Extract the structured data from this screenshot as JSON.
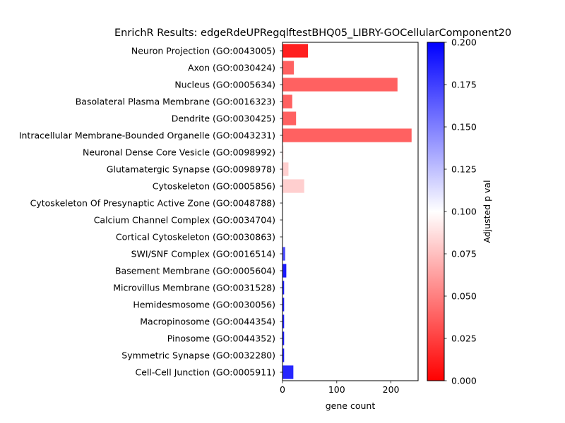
{
  "chart_data": {
    "type": "bar",
    "orientation": "horizontal",
    "title": "EnrichR Results: edgeRdeUPRegqlftestBHQ05_LIBRY-GOCellularComponent20",
    "xlabel": "gene count",
    "ylabel": "",
    "xlim": [
      0,
      250
    ],
    "xticks": [
      "0",
      "100",
      "200"
    ],
    "xtick_values": [
      0,
      100,
      200
    ],
    "grid": false,
    "colorbar": {
      "label": "Adjusted p val",
      "range": [
        0,
        0.2
      ],
      "ticks": [
        "0.000",
        "0.025",
        "0.050",
        "0.075",
        "0.100",
        "0.125",
        "0.150",
        "0.175",
        "0.200"
      ],
      "tick_values": [
        0,
        0.025,
        0.05,
        0.075,
        0.1,
        0.125,
        0.15,
        0.175,
        0.2
      ],
      "colormap": [
        "#ff0000",
        "#ffffff",
        "#0000ff"
      ]
    },
    "categories": [
      "Neuron Projection (GO:0043005)",
      "Axon (GO:0030424)",
      "Nucleus (GO:0005634)",
      "Basolateral Plasma Membrane (GO:0016323)",
      "Dendrite (GO:0030425)",
      "Intracellular Membrane-Bounded Organelle (GO:0043231)",
      "Neuronal Dense Core Vesicle (GO:0098992)",
      "Glutamatergic Synapse (GO:0098978)",
      "Cytoskeleton (GO:0005856)",
      "Cytoskeleton Of Presynaptic Active Zone (GO:0048788)",
      "Calcium Channel Complex (GO:0034704)",
      "Cortical Cytoskeleton (GO:0030863)",
      "SWI/SNF Complex (GO:0016514)",
      "Basement Membrane (GO:0005604)",
      "Microvillus Membrane (GO:0031528)",
      "Hemidesmosome (GO:0030056)",
      "Macropinosome (GO:0044354)",
      "Pinosome (GO:0044352)",
      "Symmetric Synapse (GO:0032280)",
      "Cell-Cell Junction (GO:0005911)"
    ],
    "values": [
      47,
      21,
      212,
      18,
      25,
      238,
      2,
      11,
      40,
      2,
      2,
      2,
      5,
      7,
      3,
      3,
      3,
      3,
      3,
      20
    ],
    "adjusted_p": [
      0.012,
      0.038,
      0.038,
      0.038,
      0.038,
      0.038,
      0.09,
      0.081,
      0.081,
      0.1,
      0.1,
      0.1,
      0.17,
      0.19,
      0.19,
      0.19,
      0.19,
      0.19,
      0.19,
      0.185
    ]
  }
}
